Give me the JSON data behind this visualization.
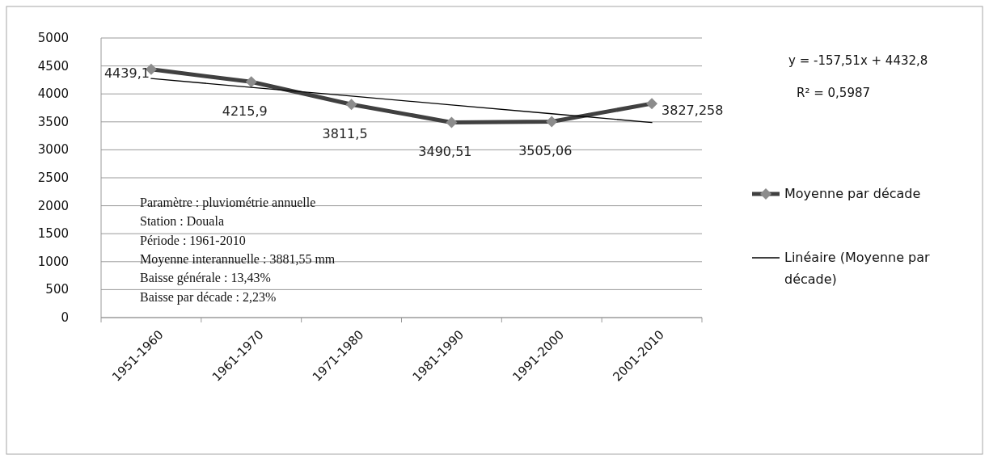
{
  "chart_data": {
    "type": "line",
    "categories": [
      "1951-1960",
      "1961-1970",
      "1971-1980",
      "1981-1990",
      "1991-2000",
      "2001-2010"
    ],
    "series": [
      {
        "name": "Moyenne par décade",
        "color": "#404040",
        "marker": "diamond",
        "values": [
          4439.1,
          4215.9,
          3811.5,
          3490.51,
          3505.06,
          3827.258
        ],
        "value_labels": [
          "4439,1",
          "4215,9",
          "3811,5",
          "3490,51",
          "3505,06",
          "3827,258"
        ]
      },
      {
        "name": "Linéaire (Moyenne par décade)",
        "color": "#000000",
        "marker": "none",
        "values": [
          4275.29,
          4117.78,
          3960.27,
          3802.76,
          3645.25,
          3487.74
        ]
      }
    ],
    "ylim": [
      0,
      5000
    ],
    "yticks": [
      0,
      500,
      1000,
      1500,
      2000,
      2500,
      3000,
      3500,
      4000,
      4500,
      5000
    ],
    "grid": "y",
    "legend": "right",
    "line_style": "solid",
    "annotations": [
      "y = -157,51x + 4432,8",
      "R² = 0,5987",
      "Paramètre : pluviométrie annuelle",
      "Station : Douala",
      "Période : 1961-2010",
      "Moyenne interannuelle : 3881,55 mm",
      "Baisse générale : 13,43%",
      "Baisse par décade : 2,23%"
    ]
  }
}
